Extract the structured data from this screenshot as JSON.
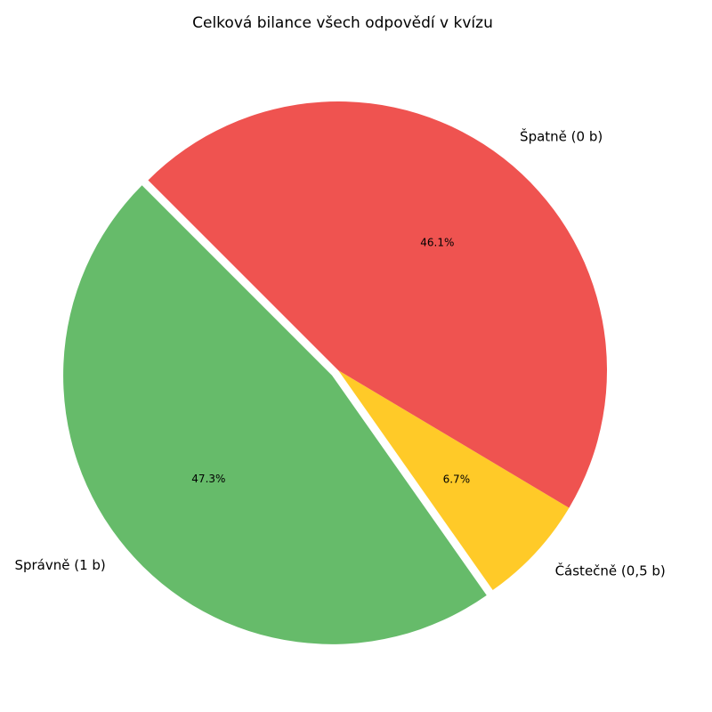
{
  "chart_data": {
    "type": "pie",
    "title": "Celková bilance všech odpovědí v kvízu",
    "categories": [
      "Správně (1 b)",
      "Částečně (0,5 b)",
      "Špatně (0 b)"
    ],
    "values": [
      47.3,
      6.7,
      46.1
    ],
    "value_labels": [
      "47.3%",
      "6.7%",
      "46.1%"
    ],
    "colors": [
      "#66bb6a",
      "#ffca28",
      "#ef5350"
    ],
    "start_angle": 135,
    "explode": [
      0.03,
      0,
      0
    ]
  }
}
